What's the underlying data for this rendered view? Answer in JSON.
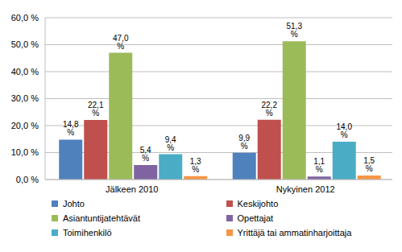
{
  "chart_data": {
    "type": "bar",
    "categories": [
      "Jälkeen 2010",
      "Nykyinen 2012"
    ],
    "series": [
      {
        "name": "Johto",
        "color": "#4f81bd",
        "values": [
          14.8,
          9.9
        ],
        "value_labels": [
          "14,8 %",
          "9,9 %"
        ]
      },
      {
        "name": "Keskijohto",
        "color": "#c0504d",
        "values": [
          22.1,
          22.2
        ],
        "value_labels": [
          "22,1 %",
          "22,2 %"
        ]
      },
      {
        "name": "Asiantuntijatehtävät",
        "color": "#9bbb59",
        "values": [
          47.0,
          51.3
        ],
        "value_labels": [
          "47,0 %",
          "51,3 %"
        ]
      },
      {
        "name": "Opettajat",
        "color": "#8064a2",
        "values": [
          5.4,
          1.1
        ],
        "value_labels": [
          "5,4 %",
          "1,1 %"
        ]
      },
      {
        "name": "Toimihenkilö",
        "color": "#4bacc6",
        "values": [
          9.4,
          14.0
        ],
        "value_labels": [
          "9,4 %",
          "14,0 %"
        ]
      },
      {
        "name": "Yrittäjä tai ammatinharjoittaja",
        "color": "#f79646",
        "values": [
          1.3,
          1.5
        ],
        "value_labels": [
          "1,3 %",
          "1,5 %"
        ]
      }
    ],
    "ylim": [
      0,
      60
    ],
    "yticks": [
      {
        "value": 0,
        "label": "0,0 %"
      },
      {
        "value": 10,
        "label": "10,0 %"
      },
      {
        "value": 20,
        "label": "20,0 %"
      },
      {
        "value": 30,
        "label": "30,0 %"
      },
      {
        "value": 40,
        "label": "40,0 %"
      },
      {
        "value": 50,
        "label": "50,0 %"
      },
      {
        "value": 60,
        "label": "60,0 %"
      }
    ],
    "grid": true,
    "legend": "bottom",
    "data_labels": true
  }
}
